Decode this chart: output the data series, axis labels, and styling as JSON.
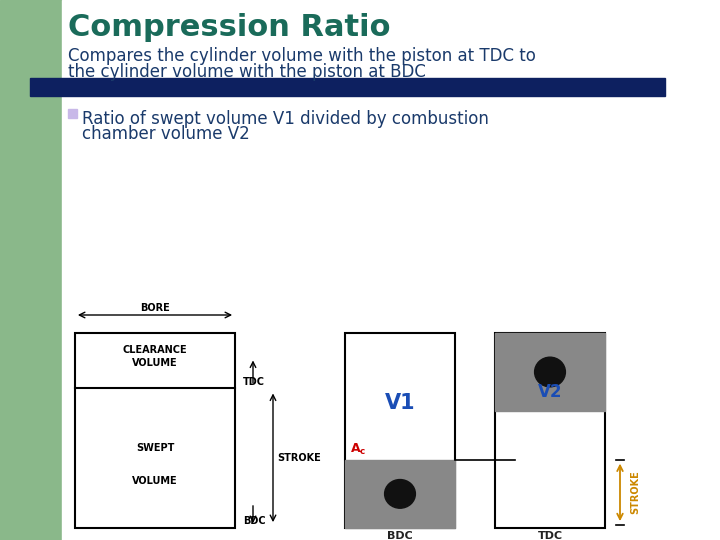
{
  "title": "Compression Ratio",
  "title_color": "#1a6b5a",
  "subtitle_line1": "Compares the cylinder volume with the piston at TDC to",
  "subtitle_line2": "the cylinder volume with the piston at BDC",
  "subtitle_color": "#1a3a6b",
  "bullet_color": "#c8b8e8",
  "bullet_text_line1": "Ratio of swept volume V1 divided by combustion",
  "bullet_text_line2": "chamber volume V2",
  "bullet_text_color": "#1a3a6b",
  "bg_color": "#ffffff",
  "left_panel_color": "#8ab88a",
  "banner_color": "#0d2060",
  "diagram_line_color": "#000000",
  "gray_piston_color": "#888888",
  "dark_oval_color": "#111111",
  "V1_color": "#1a4db5",
  "V2_color": "#1a4db5",
  "Ac_color": "#cc0000",
  "stroke_label_color": "#cc8800",
  "label_color": "#222222"
}
